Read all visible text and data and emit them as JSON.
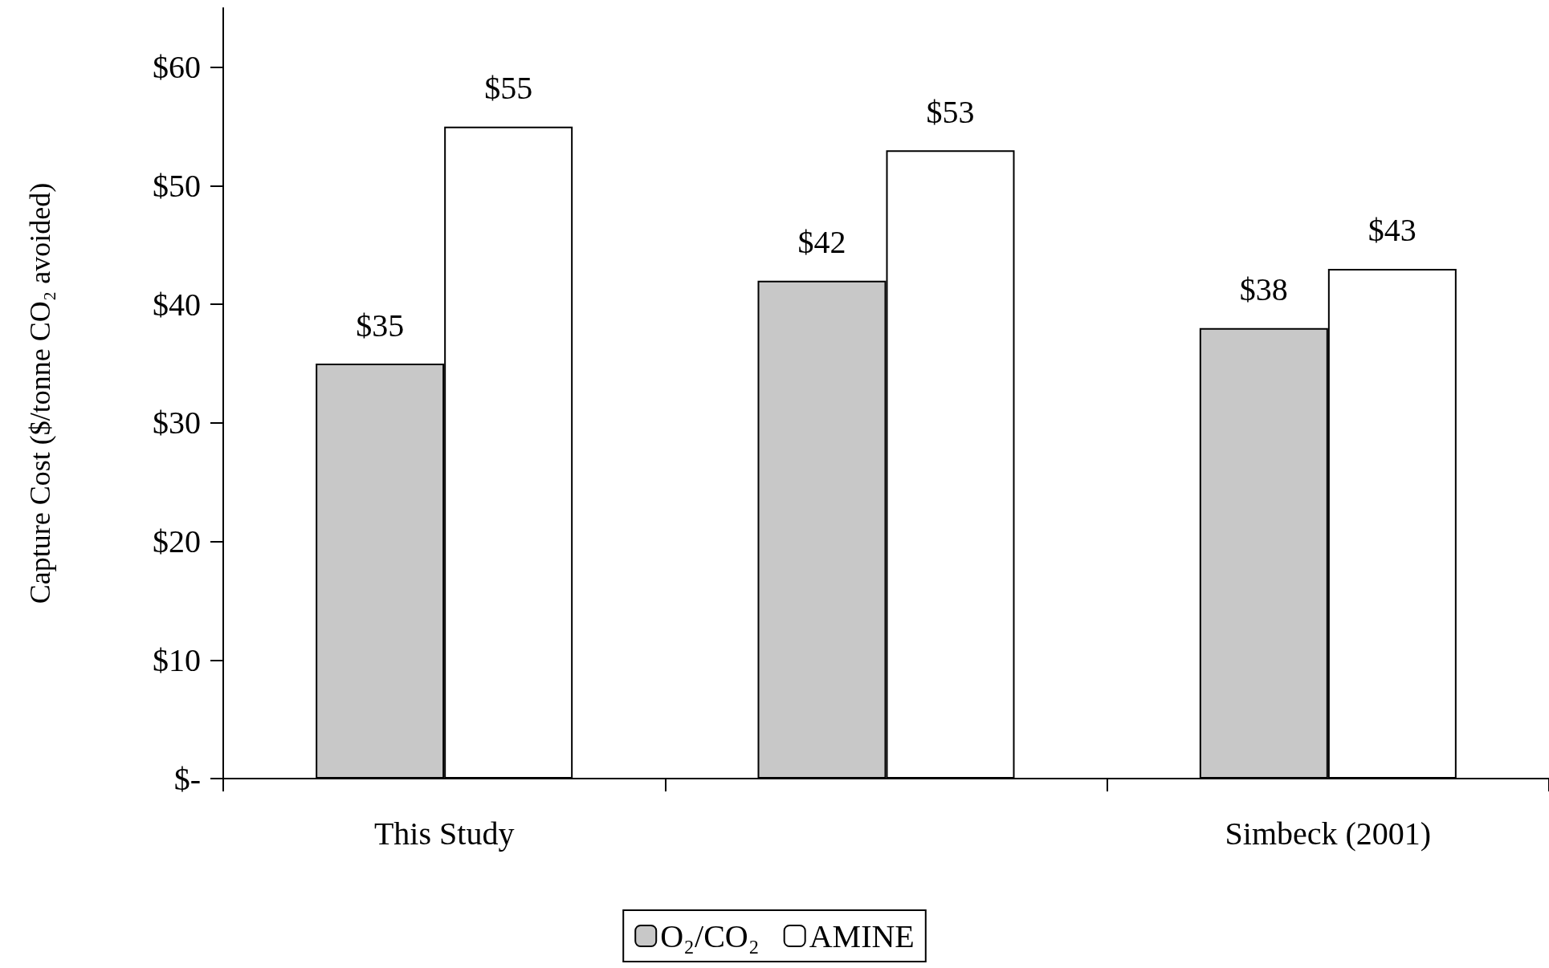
{
  "chart_data": {
    "type": "bar",
    "ylabel": "Capture Cost ($/tonne CO₂ avoided)",
    "categories": [
      "This Study",
      null,
      "Simbeck (2001)"
    ],
    "series": [
      {
        "name": "O₂/CO₂",
        "color": "#c8c8c8",
        "values": [
          35,
          42,
          38
        ],
        "value_labels": [
          "$35",
          "$42",
          "$38"
        ]
      },
      {
        "name": "AMINE",
        "color": "#ffffff",
        "values": [
          55,
          53,
          43
        ],
        "value_labels": [
          "$55",
          "$53",
          "$43"
        ]
      }
    ],
    "ylim": [
      0,
      65
    ],
    "yticks": [
      {
        "value": 0,
        "label": "$-"
      },
      {
        "value": 10,
        "label": "$10"
      },
      {
        "value": 20,
        "label": "$20"
      },
      {
        "value": 30,
        "label": "$30"
      },
      {
        "value": 40,
        "label": "$40"
      },
      {
        "value": 50,
        "label": "$50"
      },
      {
        "value": 60,
        "label": "$60"
      }
    ],
    "grid": false,
    "legend": "bottom"
  }
}
